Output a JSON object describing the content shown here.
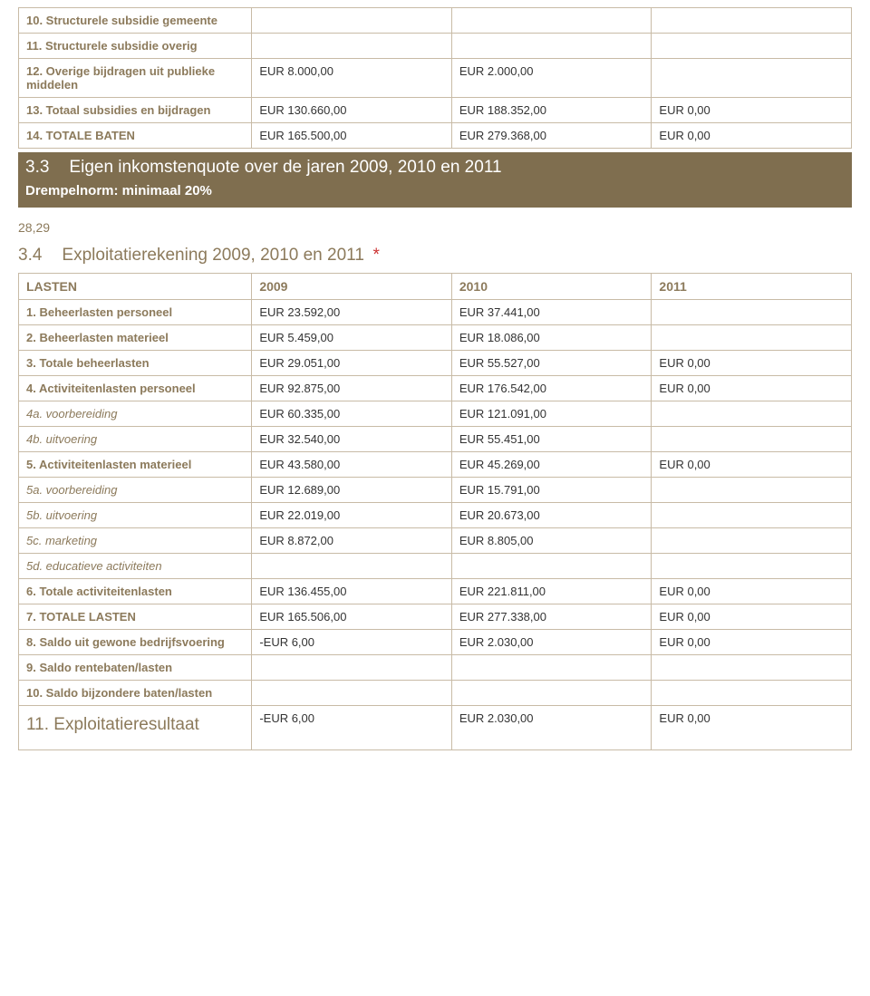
{
  "baten_rows": [
    {
      "label": "10. Structurele subsidie gemeente",
      "c2009": "",
      "c2010": "",
      "c2011": "",
      "italic": false
    },
    {
      "label": "11. Structurele subsidie overig",
      "c2009": "",
      "c2010": "",
      "c2011": "",
      "italic": false
    },
    {
      "label": "12. Overige bijdragen uit publieke middelen",
      "c2009": "EUR 8.000,00",
      "c2010": "EUR 2.000,00",
      "c2011": "",
      "italic": false
    },
    {
      "label": "13. Totaal subsidies en bijdragen",
      "c2009": "EUR 130.660,00",
      "c2010": "EUR 188.352,00",
      "c2011": "EUR 0,00",
      "italic": false
    },
    {
      "label": "14. TOTALE BATEN",
      "c2009": "EUR 165.500,00",
      "c2010": "EUR 279.368,00",
      "c2011": "EUR 0,00",
      "italic": false
    }
  ],
  "sec33": {
    "num": "3.3",
    "title": "Eigen inkomstenquote over de jaren 2009, 2010 en 2011",
    "sub": "Drempelnorm: minimaal 20%",
    "value": "28,29"
  },
  "sec34": {
    "num": "3.4",
    "title": "Exploitatierekening 2009, 2010 en 2011",
    "star": "*"
  },
  "lasten_header": {
    "label": "LASTEN",
    "c2009": "2009",
    "c2010": "2010",
    "c2011": "2011"
  },
  "lasten_rows": [
    {
      "label": "1. Beheerlasten personeel",
      "c2009": "EUR 23.592,00",
      "c2010": "EUR 37.441,00",
      "c2011": "",
      "italic": false
    },
    {
      "label": "2. Beheerlasten materieel",
      "c2009": "EUR 5.459,00",
      "c2010": "EUR 18.086,00",
      "c2011": "",
      "italic": false
    },
    {
      "label": "3. Totale beheerlasten",
      "c2009": "EUR 29.051,00",
      "c2010": "EUR 55.527,00",
      "c2011": "EUR 0,00",
      "italic": false
    },
    {
      "label": "4. Activiteitenlasten personeel",
      "c2009": "EUR 92.875,00",
      "c2010": "EUR 176.542,00",
      "c2011": "EUR 0,00",
      "italic": false
    },
    {
      "label": "4a. voorbereiding",
      "c2009": "EUR 60.335,00",
      "c2010": "EUR 121.091,00",
      "c2011": "",
      "italic": true
    },
    {
      "label": "4b. uitvoering",
      "c2009": "EUR 32.540,00",
      "c2010": "EUR 55.451,00",
      "c2011": "",
      "italic": true
    },
    {
      "label": "5. Activiteitenlasten materieel",
      "c2009": "EUR 43.580,00",
      "c2010": "EUR 45.269,00",
      "c2011": "EUR 0,00",
      "italic": false
    },
    {
      "label": "5a. voorbereiding",
      "c2009": "EUR 12.689,00",
      "c2010": "EUR 15.791,00",
      "c2011": "",
      "italic": true
    },
    {
      "label": "5b. uitvoering",
      "c2009": "EUR 22.019,00",
      "c2010": "EUR 20.673,00",
      "c2011": "",
      "italic": true
    },
    {
      "label": "5c. marketing",
      "c2009": "EUR 8.872,00",
      "c2010": "EUR 8.805,00",
      "c2011": "",
      "italic": true
    },
    {
      "label": "5d. educatieve activiteiten",
      "c2009": "",
      "c2010": "",
      "c2011": "",
      "italic": true
    },
    {
      "label": "6. Totale activiteitenlasten",
      "c2009": "EUR 136.455,00",
      "c2010": "EUR 221.811,00",
      "c2011": "EUR 0,00",
      "italic": false
    },
    {
      "label": "7. TOTALE LASTEN",
      "c2009": "EUR 165.506,00",
      "c2010": "EUR 277.338,00",
      "c2011": "EUR 0,00",
      "italic": false
    },
    {
      "label": "8. Saldo uit gewone bedrijfsvoering",
      "c2009": "-EUR 6,00",
      "c2010": "EUR 2.030,00",
      "c2011": "EUR 0,00",
      "italic": false
    },
    {
      "label": "9. Saldo rentebaten/lasten",
      "c2009": "",
      "c2010": "",
      "c2011": "",
      "italic": false
    },
    {
      "label": "10. Saldo bijzondere baten/lasten",
      "c2009": "",
      "c2010": "",
      "c2011": "",
      "italic": false
    }
  ],
  "result_row": {
    "label": "11. Exploitatieresultaat",
    "c2009": "-EUR 6,00",
    "c2010": "EUR 2.030,00",
    "c2011": "EUR 0,00"
  }
}
